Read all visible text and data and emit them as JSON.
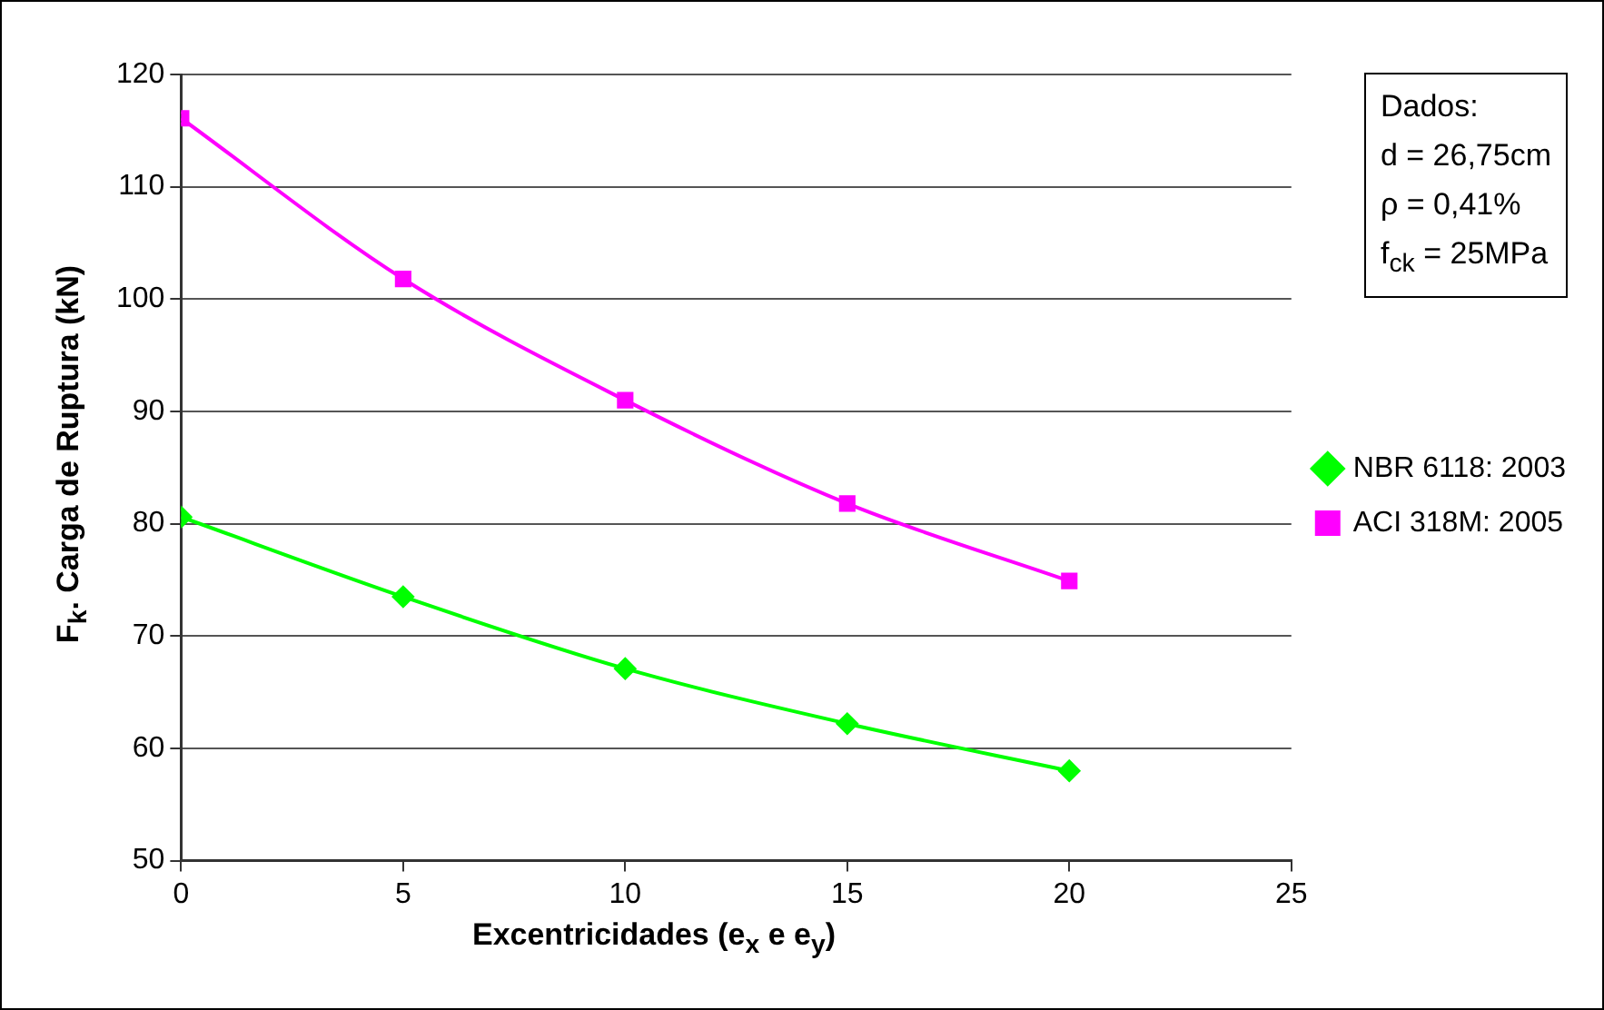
{
  "chart_data": {
    "type": "line",
    "xlabel": "Excentricidades (e$_{x}$ e e$_{y}$)",
    "ylabel": "F$_{k}$. Carga de Ruptura (kN)",
    "x": [
      0,
      5,
      10,
      15,
      20
    ],
    "xlim": [
      0,
      25
    ],
    "xticks": [
      0,
      5,
      10,
      15,
      20,
      25
    ],
    "ylim": [
      50,
      120
    ],
    "yticks": [
      50,
      60,
      70,
      80,
      90,
      100,
      110,
      120
    ],
    "series": [
      {
        "name": "NBR 6118: 2003",
        "color": "#00ff00",
        "marker": "diamond",
        "values": [
          80.6,
          73.5,
          67.1,
          62.2,
          58
        ]
      },
      {
        "name": "ACI 318M: 2005",
        "color": "#ff00ff",
        "marker": "square",
        "values": [
          116.1,
          101.8,
          91.0,
          81.8,
          74.9
        ]
      }
    ],
    "annotations": [
      "Dados:",
      "d = 26,75cm",
      "ρ = 0,41%",
      "f$_{ck}$ = 25MPa"
    ],
    "grid": "y",
    "legend": "right",
    "line_style": "solid"
  }
}
